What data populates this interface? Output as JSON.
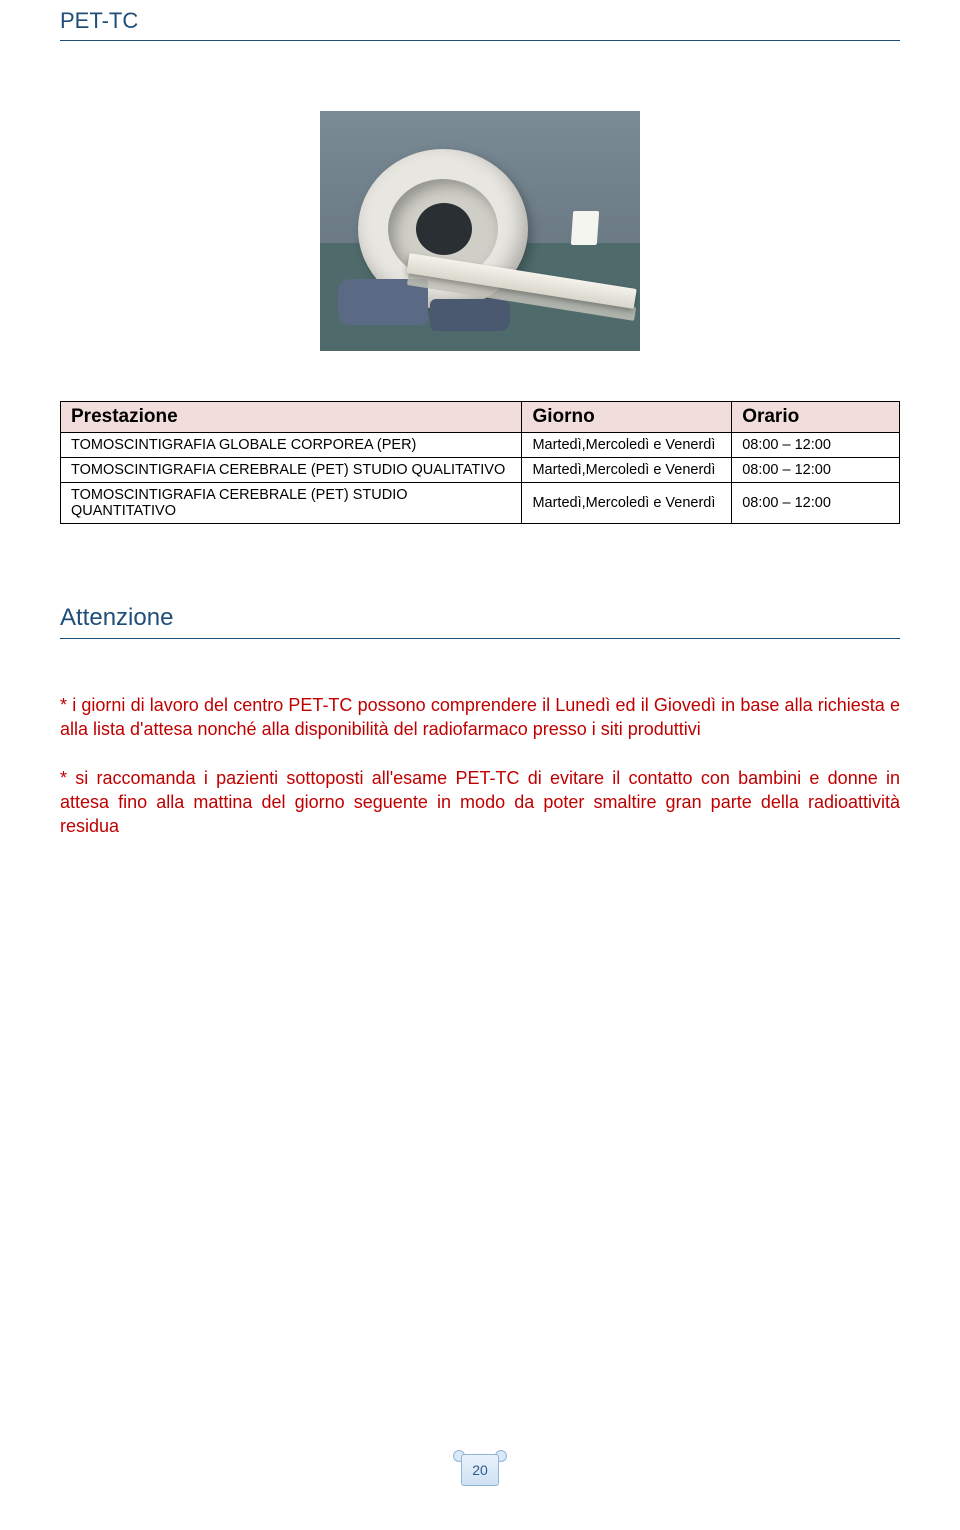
{
  "page": {
    "title": "PET-TC",
    "attention_header": "Attenzione",
    "page_number": "20"
  },
  "table": {
    "header_bg": "#f1dddc",
    "border_color": "#000000",
    "columns": [
      "Prestazione",
      "Giorno",
      "Orario"
    ],
    "rows": [
      {
        "prest": "TOMOSCINTIGRAFIA GLOBALE CORPOREA (PER)",
        "giorno": "Martedì,Mercoledì e Venerdì",
        "orario": "08:00 – 12:00"
      },
      {
        "prest": "TOMOSCINTIGRAFIA CEREBRALE (PET) STUDIO QUALITATIVO",
        "giorno": "Martedì,Mercoledì e Venerdì",
        "orario": "08:00 – 12:00"
      },
      {
        "prest": "TOMOSCINTIGRAFIA CEREBRALE (PET) STUDIO QUANTITATIVO",
        "giorno": "Martedì,Mercoledì e Venerdì",
        "orario": "08:00 – 12:00"
      }
    ]
  },
  "paragraphs": {
    "p1": "* i giorni di lavoro del centro PET-TC possono comprendere il Lunedì ed il Giovedì in base alla richiesta e alla lista d'attesa nonché alla disponibilità del radiofarmaco presso i siti produttivi",
    "p2": "* si raccomanda i pazienti sottoposti all'esame PET-TC di evitare il contatto con bambini e donne in attesa fino alla mattina del giorno seguente in modo da poter smaltire gran parte della radioattività residua"
  },
  "colors": {
    "title_color": "#1f4e79",
    "note_color": "#c00000",
    "header_fill": "#f1dddc"
  }
}
